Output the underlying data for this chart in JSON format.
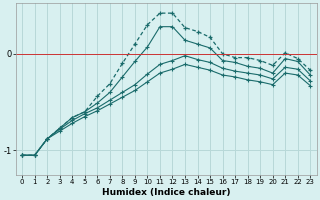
{
  "xlabel": "Humidex (Indice chaleur)",
  "background_color": "#d8f0f0",
  "grid_color": "#b8d8d8",
  "line_color": "#1a6b6b",
  "xlim": [
    -0.5,
    23.5
  ],
  "ylim": [
    -1.25,
    0.52
  ],
  "yticks": [
    -1,
    0
  ],
  "xticks": [
    0,
    1,
    2,
    3,
    4,
    5,
    6,
    7,
    8,
    9,
    10,
    11,
    12,
    13,
    14,
    15,
    16,
    17,
    18,
    19,
    20,
    21,
    22,
    23
  ],
  "x": [
    0,
    1,
    2,
    3,
    4,
    5,
    6,
    7,
    8,
    9,
    10,
    11,
    12,
    13,
    14,
    15,
    16,
    17,
    18,
    19,
    20,
    21,
    22,
    23
  ],
  "line1_y": [
    -1.05,
    -1.05,
    -0.88,
    -0.77,
    -0.66,
    -0.6,
    -0.44,
    -0.31,
    -0.1,
    0.1,
    0.3,
    0.42,
    0.42,
    0.27,
    0.23,
    0.17,
    0.0,
    -0.04,
    -0.04,
    -0.07,
    -0.12,
    0.01,
    -0.05,
    -0.17
  ],
  "line2_y": [
    -1.05,
    -1.05,
    -0.88,
    -0.77,
    -0.66,
    -0.6,
    -0.51,
    -0.4,
    -0.24,
    -0.08,
    0.07,
    0.28,
    0.28,
    0.14,
    0.1,
    0.06,
    -0.07,
    -0.09,
    -0.13,
    -0.15,
    -0.2,
    -0.05,
    -0.08,
    -0.22
  ],
  "line3_y": [
    -1.05,
    -1.05,
    -0.88,
    -0.78,
    -0.69,
    -0.62,
    -0.56,
    -0.48,
    -0.4,
    -0.32,
    -0.21,
    -0.11,
    -0.07,
    -0.02,
    -0.06,
    -0.09,
    -0.15,
    -0.18,
    -0.2,
    -0.22,
    -0.26,
    -0.14,
    -0.16,
    -0.28
  ],
  "line4_y": [
    -1.05,
    -1.05,
    -0.88,
    -0.8,
    -0.72,
    -0.65,
    -0.59,
    -0.52,
    -0.45,
    -0.38,
    -0.29,
    -0.2,
    -0.16,
    -0.11,
    -0.14,
    -0.17,
    -0.22,
    -0.24,
    -0.27,
    -0.29,
    -0.32,
    -0.2,
    -0.22,
    -0.33
  ]
}
